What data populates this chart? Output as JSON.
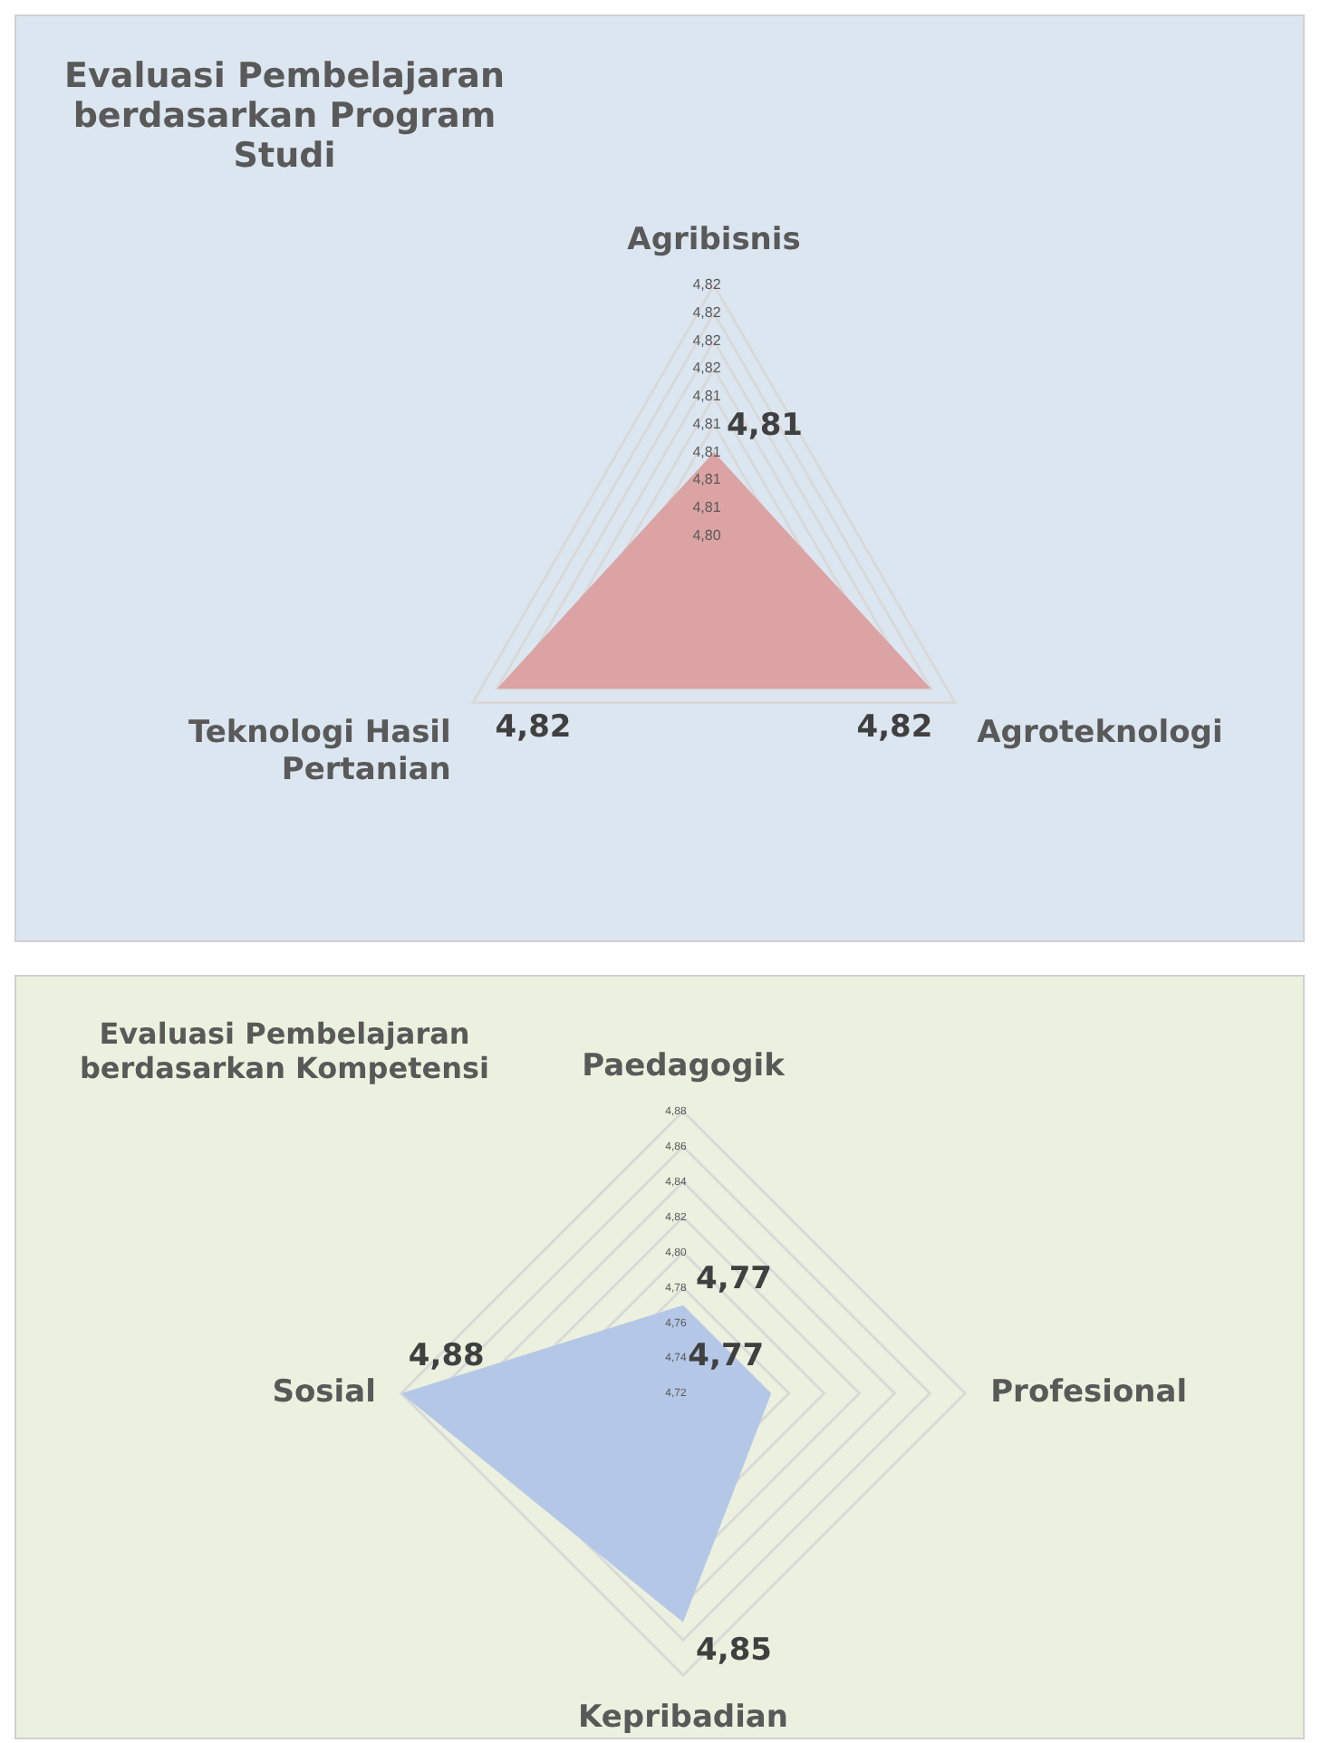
{
  "chart_data": [
    {
      "type": "radar",
      "title": "Evaluasi Pembelajaran berdasarkan Program Studi",
      "categories": [
        "Agribisnis",
        "Agroteknologi",
        "Teknologi Hasil Pertanian"
      ],
      "series": [
        {
          "color": "#dba3a3",
          "values": [
            4.81,
            4.82,
            4.82
          ],
          "value_labels": [
            "4,81",
            "4,82",
            "4,82"
          ]
        }
      ],
      "ylim": [
        4.802,
        4.822
      ],
      "yticks": [
        {
          "value": 4.804,
          "label": "4,80"
        },
        {
          "value": 4.806,
          "label": "4,81"
        },
        {
          "value": 4.808,
          "label": "4,81"
        },
        {
          "value": 4.81,
          "label": "4,81"
        },
        {
          "value": 4.812,
          "label": "4,81"
        },
        {
          "value": 4.814,
          "label": "4,81"
        },
        {
          "value": 4.816,
          "label": "4,82"
        },
        {
          "value": 4.818,
          "label": "4,82"
        },
        {
          "value": 4.82,
          "label": "4,82"
        },
        {
          "value": 4.822,
          "label": "4,82"
        }
      ],
      "grid": true,
      "legend": false
    },
    {
      "type": "radar",
      "title": "Evaluasi Pembelajaran berdasarkan Kompetensi",
      "categories": [
        "Paedagogik",
        "Profesional",
        "Kepribadian",
        "Sosial"
      ],
      "ylim": [
        4.72,
        4.88
      ],
      "yticks": [
        {
          "value": 4.72,
          "label": "4,72"
        },
        {
          "value": 4.74,
          "label": "4,74"
        },
        {
          "value": 4.76,
          "label": "4,76"
        },
        {
          "value": 4.78,
          "label": "4,78"
        },
        {
          "value": 4.8,
          "label": "4,80"
        },
        {
          "value": 4.82,
          "label": "4,82"
        },
        {
          "value": 4.84,
          "label": "4,84"
        },
        {
          "value": 4.86,
          "label": "4,86"
        },
        {
          "value": 4.88,
          "label": "4,88"
        }
      ],
      "series": [
        {
          "color": "#b4c7e7",
          "values": [
            4.77,
            4.77,
            4.85,
            4.88
          ],
          "value_labels": [
            "4,77",
            "4,77",
            "4,85",
            "4,88"
          ]
        }
      ],
      "grid": true,
      "legend": false
    }
  ]
}
